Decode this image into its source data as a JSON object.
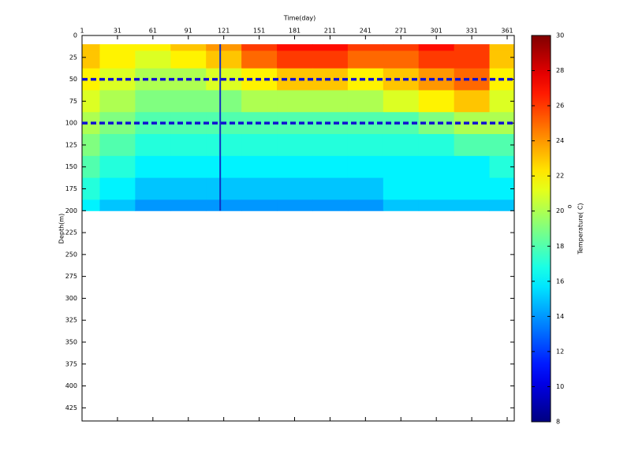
{
  "chart_data": {
    "type": "heatmap",
    "x_label": "Time(day)",
    "y_label": "Depth(m)",
    "colorbar_label": "Temperature( C)",
    "colorbar_label_superscript": "o",
    "x": [
      1,
      31,
      61,
      91,
      121,
      151,
      181,
      211,
      241,
      271,
      301,
      331,
      361
    ],
    "y": [
      10,
      25,
      50,
      75,
      100,
      125,
      150,
      175,
      200
    ],
    "z": [
      [
        23,
        22,
        22,
        23,
        24,
        26,
        27,
        27,
        26,
        26,
        27,
        26,
        23
      ],
      [
        23,
        22,
        21,
        22,
        23,
        25,
        26,
        26,
        25,
        25,
        26,
        26,
        23
      ],
      [
        22,
        21,
        20,
        20,
        21,
        22,
        23,
        23,
        22,
        23,
        24,
        25,
        22
      ],
      [
        21,
        20,
        19,
        19,
        19,
        20,
        20,
        20,
        20,
        21,
        22,
        23,
        21
      ],
      [
        20,
        19,
        18,
        18,
        18,
        18,
        18,
        18,
        18,
        18,
        19,
        20,
        20
      ],
      [
        19,
        18,
        17,
        17,
        17,
        17,
        17,
        17,
        17,
        17,
        17,
        18,
        18
      ],
      [
        18,
        17,
        16,
        16,
        16,
        16,
        16,
        16,
        16,
        16,
        16,
        16,
        17
      ],
      [
        17,
        16,
        15,
        15,
        15,
        15,
        15,
        15,
        15,
        16,
        16,
        16,
        16
      ],
      [
        16,
        15,
        14,
        14,
        14,
        14,
        14,
        14,
        14,
        15,
        15,
        15,
        15
      ]
    ],
    "xlim": [
      1,
      367
    ],
    "xticks": [
      1,
      31,
      61,
      91,
      121,
      151,
      181,
      211,
      241,
      271,
      301,
      331,
      361
    ],
    "ylim": [
      0,
      440
    ],
    "yticks": [
      0,
      25,
      50,
      75,
      100,
      125,
      150,
      175,
      200,
      225,
      250,
      275,
      300,
      325,
      350,
      375,
      400,
      425
    ],
    "y_reversed": true,
    "clim": [
      8,
      30
    ],
    "cticks": [
      8,
      10,
      12,
      14,
      16,
      18,
      20,
      22,
      24,
      26,
      28,
      30
    ],
    "colormap": "jet",
    "hlines": [
      50,
      100
    ],
    "hline_color": "#1010d0",
    "vline": 118,
    "vline_color": "#1030c0"
  }
}
